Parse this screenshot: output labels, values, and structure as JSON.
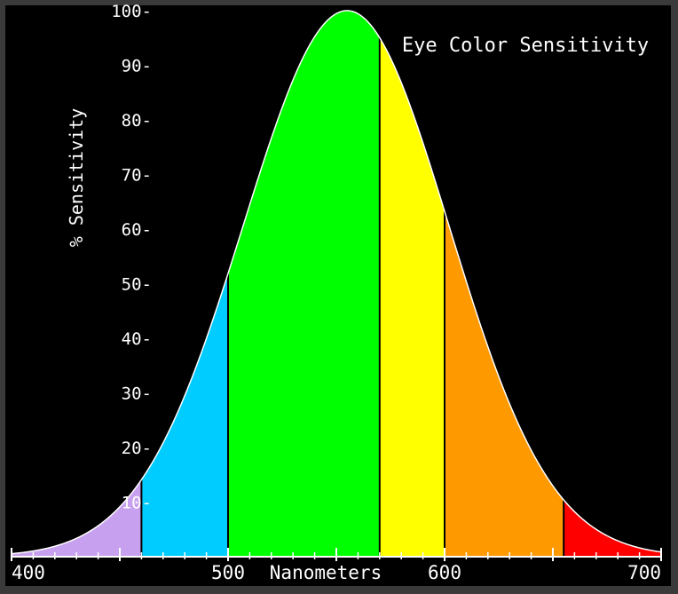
{
  "chart_data": {
    "type": "area",
    "title": "Eye Color Sensitivity",
    "xlabel": "Nanometers",
    "ylabel": "% Sensitivity",
    "xlim": [
      400,
      700
    ],
    "ylim": [
      0,
      100
    ],
    "x_tick_labels": [
      {
        "value": 400,
        "label": "400"
      },
      {
        "value": 500,
        "label": "500"
      },
      {
        "value": 600,
        "label": "600"
      },
      {
        "value": 700,
        "label": "700"
      }
    ],
    "y_ticks": [
      10,
      20,
      30,
      40,
      50,
      60,
      70,
      80,
      90,
      100
    ],
    "y_tick_labels": [
      "10-",
      "20-",
      "30-",
      "40-",
      "50-",
      "60-",
      "70-",
      "80-",
      "90-",
      "100-"
    ],
    "curve": {
      "peak_nm": 555,
      "peak_value": 100
    },
    "bands": [
      {
        "color": "violet",
        "fill": "#c8a0f0",
        "from_nm": 400,
        "to_nm": 460
      },
      {
        "color": "blue",
        "fill": "#00ccff",
        "from_nm": 460,
        "to_nm": 500
      },
      {
        "color": "green",
        "fill": "#00ff00",
        "from_nm": 500,
        "to_nm": 570
      },
      {
        "color": "yellow",
        "fill": "#ffff00",
        "from_nm": 570,
        "to_nm": 600
      },
      {
        "color": "orange",
        "fill": "#ff9900",
        "from_nm": 600,
        "to_nm": 655
      },
      {
        "color": "red",
        "fill": "#ff0000",
        "from_nm": 655,
        "to_nm": 700
      }
    ],
    "background": "#000000",
    "grid": false
  }
}
